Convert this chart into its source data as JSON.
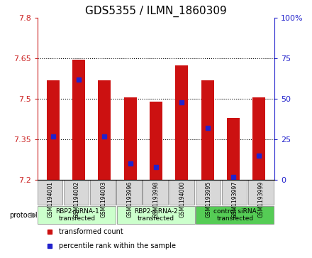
{
  "title": "GDS5355 / ILMN_1860309",
  "samples": [
    "GSM1194001",
    "GSM1194002",
    "GSM1194003",
    "GSM1193996",
    "GSM1193998",
    "GSM1194000",
    "GSM1193995",
    "GSM1193997",
    "GSM1193999"
  ],
  "bar_values": [
    7.57,
    7.645,
    7.57,
    7.505,
    7.49,
    7.625,
    7.57,
    7.43,
    7.505
  ],
  "percentile_values": [
    27,
    62,
    27,
    10,
    8,
    48,
    32,
    2,
    15
  ],
  "bar_color": "#cc1111",
  "dot_color": "#2222cc",
  "ylim_left": [
    7.2,
    7.8
  ],
  "ylim_right": [
    0,
    100
  ],
  "yticks_left": [
    7.2,
    7.35,
    7.5,
    7.65,
    7.8
  ],
  "yticks_right": [
    0,
    25,
    50,
    75,
    100
  ],
  "ytick_labels_left": [
    "7.2",
    "7.35",
    "7.5",
    "7.65",
    "7.8"
  ],
  "ytick_labels_right": [
    "0",
    "25",
    "50",
    "75",
    "100%"
  ],
  "groups": [
    {
      "label": "RBP2-siRNA-1\ntransfected",
      "start": 0,
      "end": 3,
      "color": "#ccffcc"
    },
    {
      "label": "RBP2-siRNA-2\ntransfected",
      "start": 3,
      "end": 6,
      "color": "#ccffcc"
    },
    {
      "label": "control siRNA\ntransfected",
      "start": 6,
      "end": 9,
      "color": "#55cc55"
    }
  ],
  "protocol_label": "protocol",
  "legend_items": [
    {
      "label": "transformed count",
      "color": "#cc1111"
    },
    {
      "label": "percentile rank within the sample",
      "color": "#2222cc"
    }
  ],
  "bar_width": 0.5,
  "base_value": 7.2,
  "grid_color": "#000000",
  "bg_color": "#ffffff",
  "plot_bg": "#ffffff",
  "tick_area_bg": "#d0d0d0",
  "title_fontsize": 11,
  "tick_fontsize": 8,
  "label_fontsize": 8
}
